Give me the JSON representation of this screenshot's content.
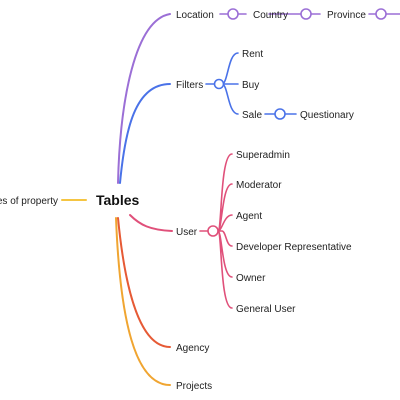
{
  "root": {
    "label": "Tables"
  },
  "left_branch": {
    "label": "Types of property",
    "color": "#f5c542"
  },
  "branches": {
    "location": {
      "label": "Location",
      "color": "#9b6fd6",
      "chain": [
        "Country",
        "Province"
      ]
    },
    "filters": {
      "label": "Filters",
      "color": "#4a72e8",
      "children": [
        "Rent",
        "Buy",
        "Sale"
      ],
      "sale_child": "Questionary"
    },
    "user": {
      "label": "User",
      "color": "#e0507a",
      "children": [
        "Superadmin",
        "Moderator",
        "Agent",
        "Developer Representative",
        "Owner",
        "General User"
      ]
    },
    "agency": {
      "label": "Agency",
      "color": "#e65a35"
    },
    "projects": {
      "label": "Projects",
      "color": "#f0a531"
    }
  }
}
